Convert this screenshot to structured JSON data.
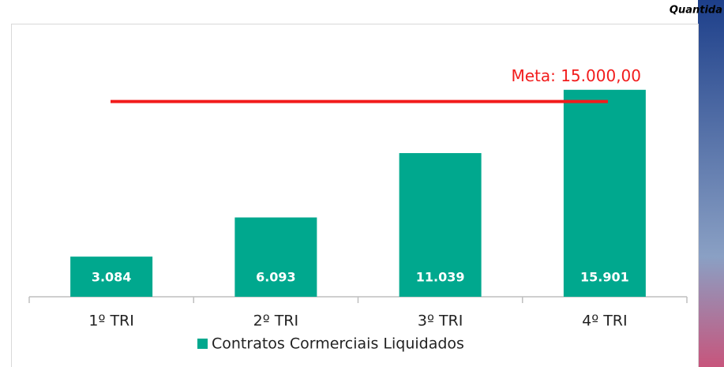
{
  "chart_data": {
    "type": "bar",
    "header": "Quantida",
    "categories": [
      "1º TRI",
      "2º TRI",
      "3º TRI",
      "4º TRI"
    ],
    "series": [
      {
        "name": "Contratos Cormerciais Liquidados",
        "color": "#00a88e",
        "values": [
          3084,
          6093,
          11039,
          15901
        ],
        "value_labels": [
          "3.084",
          "6.093",
          "11.039",
          "15.901"
        ]
      }
    ],
    "target": {
      "value": 15000,
      "label": "Meta: 15.000,00",
      "color": "#f21c1c"
    },
    "ylim": [
      0,
      20800
    ]
  }
}
